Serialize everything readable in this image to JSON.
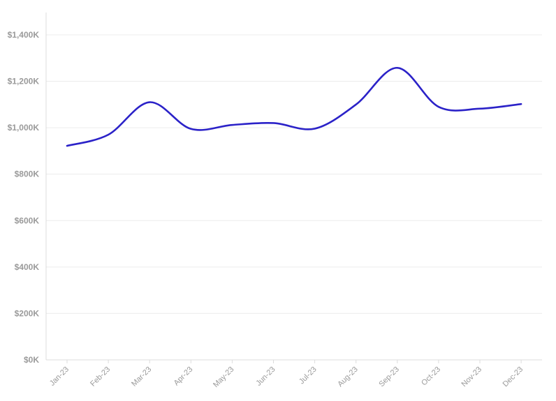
{
  "chart_data": {
    "type": "line",
    "title": "",
    "xlabel": "",
    "ylabel": "",
    "categories": [
      "Jan-23",
      "Feb-23",
      "Mar-23",
      "Apr-23",
      "May-23",
      "Jun-23",
      "Jul-23",
      "Aug-23",
      "Sep-23",
      "Oct-23",
      "Nov-23",
      "Dec-23"
    ],
    "series": [
      {
        "values": [
          922,
          970,
          1110,
          995,
          1012,
          1020,
          996,
          1100,
          1258,
          1090,
          1082,
          1102
        ],
        "color": "#2b22c8"
      }
    ],
    "value_unit": "thousands of dollars",
    "ylim": [
      0,
      1500
    ],
    "yticks": [
      0,
      200,
      400,
      600,
      800,
      1000,
      1200,
      1400
    ],
    "ytick_labels": [
      "$0K",
      "$200K",
      "$400K",
      "$600K",
      "$800K",
      "$1,000K",
      "$1,200K",
      "$1,400K"
    ],
    "grid": true,
    "legend": "none"
  }
}
